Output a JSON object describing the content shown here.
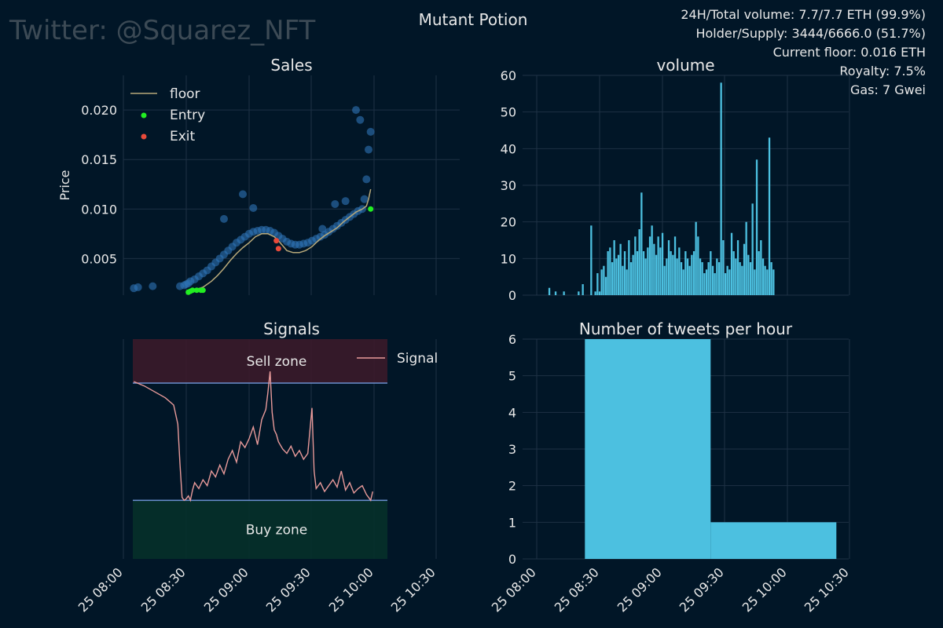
{
  "watermark": "Twitter: @Squarez_NFT",
  "title": "Mutant Potion",
  "stats": [
    "24H/Total volume: 7.7/7.7 ETH (99.9%)",
    "Holder/Supply: 3444/6666.0 (51.7%)",
    "Current floor: 0.016 ETH",
    "Royalty: 7.5%",
    "Gas: 7 Gwei"
  ],
  "colors": {
    "background": "#011627",
    "grid": "#1e3145",
    "sales_dot": "#2e75b8",
    "floor": "#b8a97a",
    "entry": "#22ee22",
    "exit": "#e84a3a",
    "bar": "#4cc0e0",
    "signal": "#e89a9a",
    "sell_zone": "#3a1a2a",
    "buy_zone": "#05302a",
    "threshold": "#6a8fcf"
  },
  "x_ticks": [
    "25 08:00",
    "25 08:30",
    "25 09:00",
    "25 09:30",
    "25 10:00",
    "25 10:30"
  ],
  "chart_data": [
    {
      "id": "sales",
      "type": "scatter",
      "title": "Sales",
      "ylabel": "Price",
      "xlabel": "",
      "xlim": [
        "08:00",
        "10:30"
      ],
      "ylim": [
        0.0013,
        0.0235
      ],
      "yticks": [
        "0.005",
        "0.010",
        "0.015",
        "0.020"
      ],
      "ytick_values": [
        0.005,
        0.01,
        0.015,
        0.02
      ],
      "legend": [
        "floor",
        "Entry",
        "Exit"
      ],
      "legend_position": "top-left",
      "grid": true,
      "floor": {
        "x": [
          "08:31",
          "08:35",
          "08:38",
          "08:42",
          "08:45",
          "08:48",
          "08:51",
          "08:54",
          "08:57",
          "09:00",
          "09:03",
          "09:06",
          "09:09",
          "09:12",
          "09:14",
          "09:16",
          "09:18",
          "09:21",
          "09:24",
          "09:27",
          "09:30",
          "09:33",
          "09:36",
          "09:39",
          "09:42",
          "09:45",
          "09:48",
          "09:51",
          "09:54",
          "09:56",
          "09:57",
          "09:58"
        ],
        "y": [
          0.0018,
          0.0019,
          0.0021,
          0.0027,
          0.0033,
          0.004,
          0.0048,
          0.0055,
          0.0061,
          0.0066,
          0.0072,
          0.0075,
          0.0075,
          0.0072,
          0.0068,
          0.0063,
          0.0058,
          0.0056,
          0.0056,
          0.0058,
          0.0062,
          0.0068,
          0.0073,
          0.0077,
          0.0081,
          0.0087,
          0.0092,
          0.0097,
          0.01,
          0.0103,
          0.011,
          0.012
        ]
      },
      "sales": {
        "x": [
          "08:05",
          "08:07",
          "08:14",
          "08:27",
          "08:29",
          "08:30",
          "08:31",
          "08:32",
          "08:34",
          "08:36",
          "08:38",
          "08:40",
          "08:42",
          "08:44",
          "08:46",
          "08:48",
          "08:50",
          "08:52",
          "08:54",
          "08:56",
          "08:58",
          "09:00",
          "09:02",
          "09:04",
          "09:06",
          "09:08",
          "09:10",
          "09:12",
          "09:14",
          "09:16",
          "09:18",
          "09:20",
          "09:22",
          "09:24",
          "09:26",
          "09:28",
          "09:30",
          "09:32",
          "09:34",
          "09:36",
          "09:38",
          "09:40",
          "09:42",
          "09:44",
          "09:46",
          "09:48",
          "09:50",
          "09:52",
          "09:54",
          "09:55",
          "09:56",
          "09:57",
          "09:58",
          "08:48",
          "08:57",
          "09:02",
          "09:35",
          "09:41",
          "09:46",
          "09:51",
          "09:53"
        ],
        "y": [
          0.002,
          0.0021,
          0.0022,
          0.0022,
          0.0023,
          0.0024,
          0.0025,
          0.0027,
          0.0029,
          0.0032,
          0.0035,
          0.0038,
          0.0042,
          0.0046,
          0.005,
          0.0054,
          0.0058,
          0.0062,
          0.0066,
          0.0069,
          0.0072,
          0.0075,
          0.0077,
          0.0078,
          0.0079,
          0.0079,
          0.0078,
          0.0076,
          0.0073,
          0.007,
          0.0067,
          0.0065,
          0.0064,
          0.0064,
          0.0065,
          0.0066,
          0.0068,
          0.007,
          0.0072,
          0.0074,
          0.0077,
          0.008,
          0.0083,
          0.0086,
          0.0089,
          0.0092,
          0.0095,
          0.0098,
          0.01,
          0.011,
          0.013,
          0.016,
          0.0178,
          0.009,
          0.0115,
          0.0101,
          0.008,
          0.0105,
          0.0108,
          0.02,
          0.019
        ]
      },
      "entry": {
        "x": [
          "08:31",
          "08:32",
          "08:33",
          "08:35",
          "08:37",
          "08:38",
          "09:58"
        ],
        "y": [
          0.0016,
          0.0017,
          0.0018,
          0.0018,
          0.0018,
          0.0018,
          0.01
        ]
      },
      "exit": {
        "x": [
          "09:13",
          "09:14"
        ],
        "y": [
          0.0068,
          0.006
        ]
      }
    },
    {
      "id": "volume",
      "type": "bar",
      "title": "volume",
      "xlabel": "",
      "ylabel": "",
      "xlim": [
        "08:00",
        "10:30"
      ],
      "ylim": [
        0,
        60
      ],
      "yticks": [
        "0",
        "10",
        "20",
        "30",
        "40",
        "50",
        "60"
      ],
      "ytick_values": [
        0,
        10,
        20,
        30,
        40,
        50,
        60
      ],
      "grid": true,
      "x": [
        "08:06",
        "08:09",
        "08:13",
        "08:20",
        "08:22",
        "08:26",
        "08:28",
        "08:29",
        "08:30",
        "08:31",
        "08:32",
        "08:33",
        "08:34",
        "08:35",
        "08:36",
        "08:37",
        "08:38",
        "08:39",
        "08:40",
        "08:41",
        "08:42",
        "08:43",
        "08:44",
        "08:45",
        "08:46",
        "08:47",
        "08:48",
        "08:49",
        "08:50",
        "08:51",
        "08:52",
        "08:53",
        "08:54",
        "08:55",
        "08:56",
        "08:57",
        "08:58",
        "08:59",
        "09:00",
        "09:01",
        "09:02",
        "09:03",
        "09:04",
        "09:05",
        "09:06",
        "09:07",
        "09:08",
        "09:09",
        "09:10",
        "09:11",
        "09:12",
        "09:13",
        "09:14",
        "09:15",
        "09:16",
        "09:17",
        "09:18",
        "09:19",
        "09:20",
        "09:21",
        "09:22",
        "09:23",
        "09:24",
        "09:25",
        "09:26",
        "09:27",
        "09:28",
        "09:29",
        "09:30",
        "09:31",
        "09:32",
        "09:33",
        "09:34",
        "09:35",
        "09:36",
        "09:37",
        "09:38",
        "09:39",
        "09:40",
        "09:41",
        "09:42",
        "09:43",
        "09:44",
        "09:45",
        "09:46",
        "09:47",
        "09:48",
        "09:49",
        "09:50",
        "09:51",
        "09:52",
        "09:53"
      ],
      "values": [
        2,
        1,
        1,
        1,
        3,
        19,
        1,
        6,
        1,
        7,
        8,
        5,
        12,
        13,
        9,
        15,
        10,
        11,
        14,
        8,
        12,
        7,
        15,
        9,
        11,
        16,
        12,
        18,
        28,
        12,
        10,
        13,
        16,
        19,
        14,
        11,
        16,
        13,
        17,
        8,
        10,
        15,
        12,
        11,
        16,
        10,
        13,
        9,
        7,
        12,
        10,
        8,
        11,
        12,
        20,
        16,
        10,
        9,
        6,
        7,
        9,
        12,
        8,
        6,
        10,
        9,
        58,
        15,
        6,
        8,
        7,
        17,
        12,
        10,
        15,
        9,
        8,
        14,
        20,
        11,
        9,
        25,
        7,
        37,
        12,
        15,
        10,
        8,
        7,
        43,
        9,
        7
      ],
      "x_sparse_zero_gaps": true
    },
    {
      "id": "signals",
      "type": "line",
      "title": "Signals",
      "xlabel": "",
      "ylabel": "",
      "xlim": [
        "08:00",
        "10:30"
      ],
      "ylim": [
        -0.3,
        1.2
      ],
      "grid": true,
      "legend": [
        "Signal"
      ],
      "legend_position": "top-right",
      "zones": [
        {
          "label": "Sell zone",
          "from": 0.9,
          "to": 1.2
        },
        {
          "label": "Buy zone",
          "from": -0.3,
          "to": 0.1
        }
      ],
      "thresholds": [
        0.9,
        0.1
      ],
      "x": [
        "08:05",
        "08:10",
        "08:15",
        "08:20",
        "08:24",
        "08:26",
        "08:27",
        "08:28",
        "08:29",
        "08:30",
        "08:31",
        "08:32",
        "08:33",
        "08:34",
        "08:36",
        "08:38",
        "08:40",
        "08:42",
        "08:44",
        "08:46",
        "08:48",
        "08:50",
        "08:52",
        "08:54",
        "08:56",
        "08:58",
        "09:00",
        "09:02",
        "09:04",
        "09:06",
        "09:08",
        "09:09",
        "09:10",
        "09:11",
        "09:12",
        "09:13",
        "09:14",
        "09:16",
        "09:18",
        "09:20",
        "09:22",
        "09:24",
        "09:26",
        "09:28",
        "09:30",
        "09:31",
        "09:32",
        "09:34",
        "09:36",
        "09:38",
        "09:40",
        "09:42",
        "09:44",
        "09:46",
        "09:48",
        "09:50",
        "09:52",
        "09:54",
        "09:56",
        "09:57",
        "09:58",
        "09:59"
      ],
      "values": [
        0.91,
        0.88,
        0.84,
        0.8,
        0.75,
        0.62,
        0.35,
        0.12,
        0.1,
        0.11,
        0.13,
        0.1,
        0.17,
        0.22,
        0.18,
        0.24,
        0.2,
        0.3,
        0.26,
        0.34,
        0.28,
        0.38,
        0.44,
        0.36,
        0.5,
        0.46,
        0.52,
        0.6,
        0.48,
        0.65,
        0.72,
        0.84,
        0.98,
        0.7,
        0.58,
        0.55,
        0.5,
        0.45,
        0.42,
        0.47,
        0.4,
        0.44,
        0.38,
        0.42,
        0.73,
        0.3,
        0.18,
        0.22,
        0.16,
        0.2,
        0.24,
        0.19,
        0.3,
        0.17,
        0.22,
        0.15,
        0.18,
        0.2,
        0.14,
        0.12,
        0.1,
        0.16
      ]
    },
    {
      "id": "tweets",
      "type": "area",
      "title": "Number of tweets per hour",
      "xlabel": "",
      "ylabel": "",
      "xlim": [
        "08:00",
        "10:30"
      ],
      "ylim": [
        0,
        6
      ],
      "yticks": [
        "0",
        "1",
        "2",
        "3",
        "4",
        "5",
        "6"
      ],
      "ytick_values": [
        0,
        1,
        2,
        3,
        4,
        5,
        6
      ],
      "grid": true,
      "steps": [
        {
          "from": "08:23",
          "to": "09:23",
          "value": 6
        },
        {
          "from": "09:23",
          "to": "10:23",
          "value": 1
        }
      ]
    }
  ]
}
